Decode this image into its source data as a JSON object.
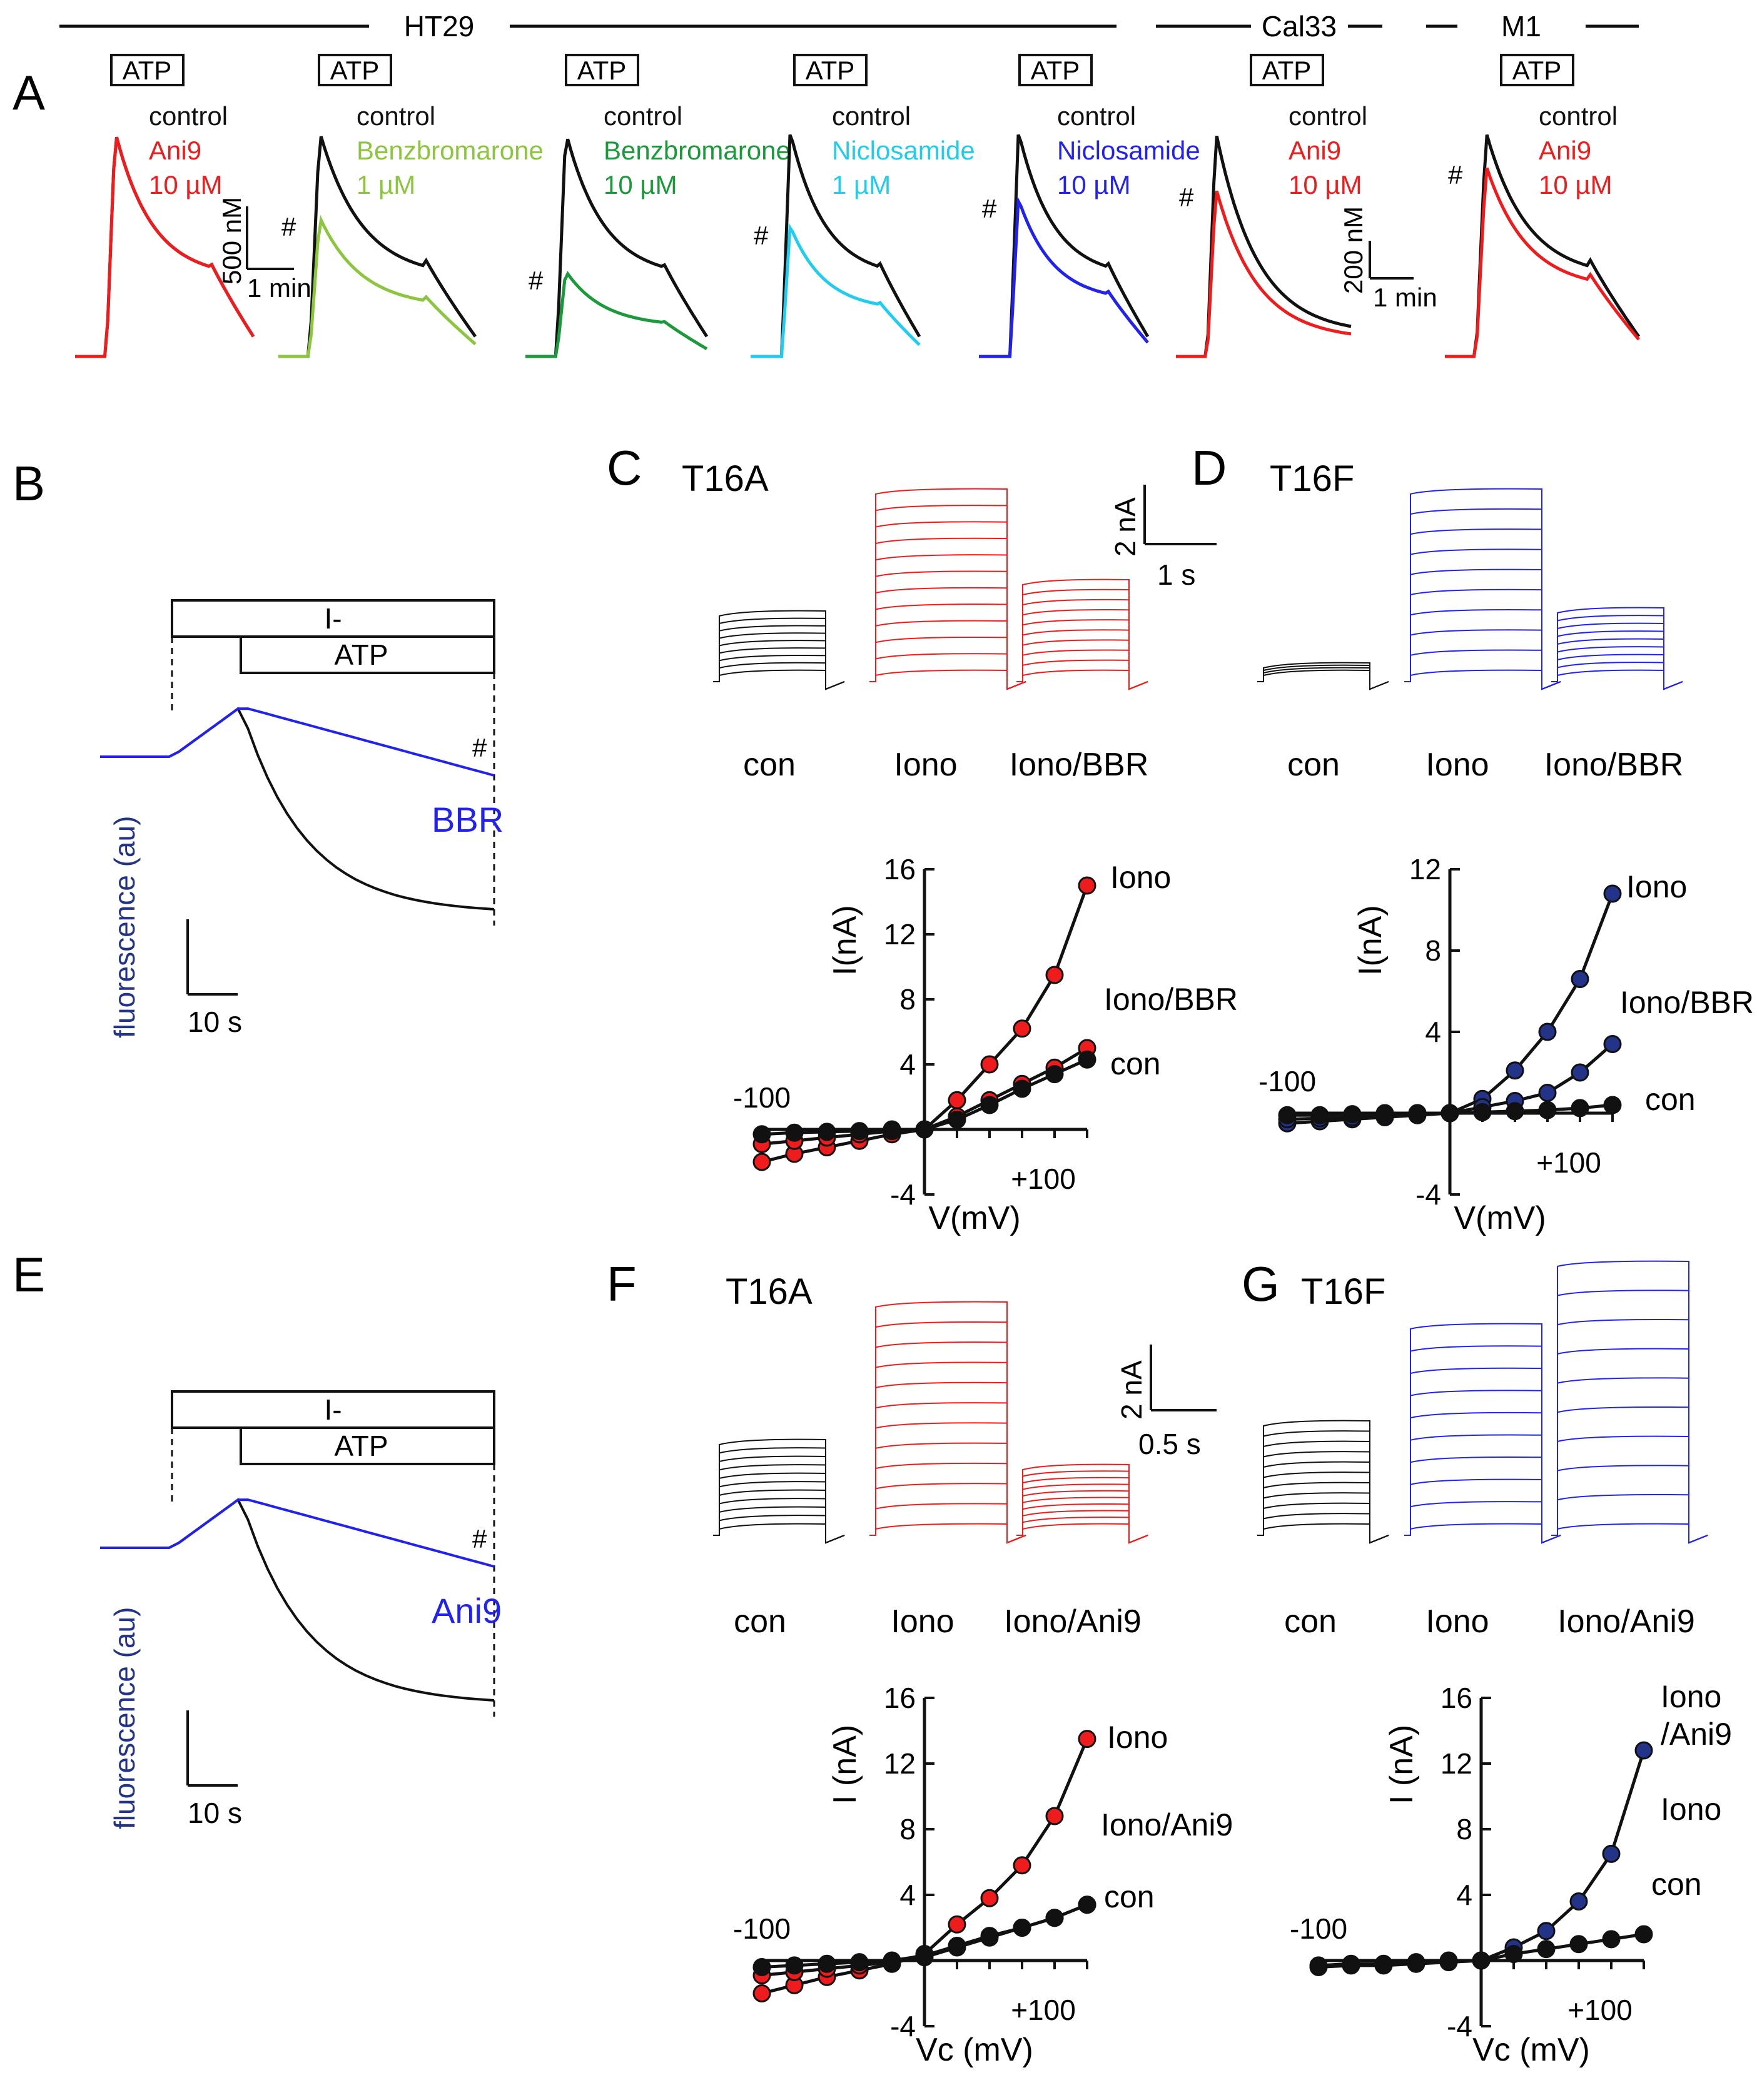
{
  "colors": {
    "black": "#111111",
    "red": "#ee1c1c",
    "light_green": "#8cc63f",
    "green": "#1a9a3a",
    "cyan": "#22ccee",
    "blue": "#2222ee",
    "navy": "#223388"
  },
  "header": {
    "ht29": "HT29",
    "cal33": "Cal33",
    "m1": "M1"
  },
  "panels": {
    "A": {
      "letter": "A"
    },
    "B": {
      "letter": "B"
    },
    "C": {
      "letter": "C",
      "title": "T16A"
    },
    "D": {
      "letter": "D",
      "title": "T16F"
    },
    "E": {
      "letter": "E"
    },
    "F": {
      "letter": "F",
      "title": "T16A"
    },
    "G": {
      "letter": "G",
      "title": "T16F"
    }
  },
  "calcium": {
    "atp": "ATP",
    "hash": "#",
    "scale1": {
      "y": "500 nM",
      "x": "1 min"
    },
    "scale2": {
      "y": "200 nM",
      "x": "1 min"
    },
    "traces": [
      {
        "legend": [
          "control",
          "Ani9",
          "10 µM"
        ],
        "color": "red",
        "amp": 1.0,
        "hash": false,
        "plateau": true
      },
      {
        "legend": [
          "control",
          "Benzbromarone",
          "1 µM"
        ],
        "color": "light_green",
        "amp": 0.62,
        "hash": true,
        "plateau": true
      },
      {
        "legend": [
          "control",
          "Benzbromarone",
          "10 µM"
        ],
        "color": "green",
        "amp": 0.38,
        "hash": true,
        "plateau": true
      },
      {
        "legend": [
          "control",
          "Niclosamide",
          "1 µM"
        ],
        "color": "cyan",
        "amp": 0.58,
        "hash": true,
        "plateau": true
      },
      {
        "legend": [
          "control",
          "Niclosamide",
          "10 µM"
        ],
        "color": "blue",
        "amp": 0.7,
        "hash": true,
        "plateau": true
      },
      {
        "legend": [
          "control",
          "Ani9",
          "10 µM"
        ],
        "color": "red",
        "amp": 0.75,
        "hash": true,
        "plateau": false
      },
      {
        "legend": [
          "control",
          "Ani9",
          "10 µM"
        ],
        "color": "red",
        "amp": 0.85,
        "hash": true,
        "plateau": true
      }
    ]
  },
  "iodide": {
    "B": {
      "iodide": "I-",
      "atp": "ATP",
      "drug": "BBR",
      "hash": "#",
      "ylabel": "fluorescence (au)",
      "xscale": "10 s"
    },
    "E": {
      "iodide": "I-",
      "atp": "ATP",
      "drug": "Ani9",
      "hash": "#",
      "ylabel": "fluorescence (au)",
      "xscale": "10 s"
    }
  },
  "currents": {
    "C": {
      "labels": [
        "con",
        "Iono",
        "Iono/BBR"
      ],
      "scale": {
        "y": "2 nA",
        "x": "1 s"
      }
    },
    "D": {
      "labels": [
        "con",
        "Iono",
        "Iono/BBR"
      ]
    },
    "F": {
      "labels": [
        "con",
        "Iono",
        "Iono/Ani9"
      ],
      "scale": {
        "y": "2 nA",
        "x": "0.5 s"
      }
    },
    "G": {
      "labels": [
        "con",
        "Iono",
        "Iono/Ani9"
      ]
    }
  },
  "chart_data": [
    {
      "panel": "C",
      "type": "line",
      "xlabel": "V(mV)",
      "ylabel": "I(nA)",
      "xlim": [
        -100,
        100
      ],
      "ylim": [
        -4,
        16
      ],
      "yticks": [
        -4,
        4,
        8,
        12,
        16
      ],
      "xtick_labels": [
        "-100",
        "+100"
      ],
      "x": [
        -100,
        -80,
        -60,
        -40,
        -20,
        0,
        20,
        40,
        60,
        80,
        100
      ],
      "series": [
        {
          "name": "Iono",
          "color": "red",
          "values": [
            -2.0,
            -1.5,
            -1.1,
            -0.7,
            -0.3,
            0,
            1.8,
            4.0,
            6.2,
            9.5,
            15.0
          ]
        },
        {
          "name": "Iono/BBR",
          "color": "red",
          "values": [
            -0.9,
            -0.7,
            -0.5,
            -0.3,
            -0.1,
            0,
            0.8,
            1.8,
            2.8,
            3.8,
            5.0
          ]
        },
        {
          "name": "con",
          "color": "black",
          "values": [
            -0.3,
            -0.2,
            -0.15,
            -0.1,
            0,
            0,
            0.6,
            1.5,
            2.5,
            3.4,
            4.3
          ]
        }
      ]
    },
    {
      "panel": "D",
      "type": "line",
      "xlabel": "V(mV)",
      "ylabel": "I(nA)",
      "xlim": [
        -100,
        100
      ],
      "ylim": [
        -4,
        12
      ],
      "yticks": [
        -4,
        4,
        8,
        12
      ],
      "xtick_labels": [
        "-100",
        "+100"
      ],
      "x": [
        -100,
        -80,
        -60,
        -40,
        -20,
        0,
        20,
        40,
        60,
        80,
        100
      ],
      "series": [
        {
          "name": "Iono",
          "color": "navy",
          "values": [
            -0.5,
            -0.4,
            -0.3,
            -0.2,
            -0.1,
            0,
            0.7,
            2.1,
            4.0,
            6.6,
            10.8
          ]
        },
        {
          "name": "Iono/BBR",
          "color": "navy",
          "values": [
            -0.3,
            -0.25,
            -0.2,
            -0.1,
            0,
            0,
            0.3,
            0.6,
            1.0,
            2.0,
            3.4
          ]
        },
        {
          "name": "con",
          "color": "black",
          "values": [
            -0.1,
            -0.1,
            -0.05,
            0,
            0,
            0,
            0.05,
            0.1,
            0.15,
            0.25,
            0.4
          ]
        }
      ]
    },
    {
      "panel": "F",
      "type": "line",
      "xlabel": "Vc (mV)",
      "ylabel": "I (nA)",
      "xlim": [
        -100,
        100
      ],
      "ylim": [
        -4,
        16
      ],
      "yticks": [
        -4,
        4,
        8,
        12,
        16
      ],
      "xtick_labels": [
        "-100",
        "+100"
      ],
      "x": [
        -100,
        -80,
        -60,
        -40,
        -20,
        0,
        20,
        40,
        60,
        80,
        100
      ],
      "series": [
        {
          "name": "Iono",
          "color": "red",
          "values": [
            -2.0,
            -1.5,
            -1.0,
            -0.6,
            -0.2,
            0.4,
            2.2,
            3.8,
            5.8,
            8.8,
            13.5
          ]
        },
        {
          "name": "Iono/Ani9",
          "color": "red",
          "values": [
            -0.9,
            -0.7,
            -0.5,
            -0.3,
            -0.1,
            0.2,
            0.8,
            1.4,
            2.0,
            2.6,
            3.4
          ]
        },
        {
          "name": "con",
          "color": "black",
          "values": [
            -0.4,
            -0.3,
            -0.2,
            -0.1,
            0,
            0.3,
            0.9,
            1.5,
            2.0,
            2.6,
            3.4
          ]
        }
      ]
    },
    {
      "panel": "G",
      "type": "line",
      "xlabel": "Vc (mV)",
      "ylabel": "I (nA)",
      "xlim": [
        -100,
        100
      ],
      "ylim": [
        -4,
        16
      ],
      "yticks": [
        -4,
        4,
        8,
        12,
        16
      ],
      "xtick_labels": [
        "-100",
        "+100"
      ],
      "x": [
        -100,
        -80,
        -60,
        -40,
        -20,
        0,
        20,
        40,
        60,
        80,
        100
      ],
      "series_labels": [
        "Iono /Ani9",
        "Iono"
      ],
      "series": [
        {
          "color": "navy",
          "values": [
            -0.4,
            -0.3,
            -0.3,
            -0.2,
            -0.1,
            0,
            0.8,
            1.8,
            3.6,
            6.5,
            12.8
          ]
        },
        {
          "name": "con",
          "color": "black",
          "values": [
            -0.3,
            -0.2,
            -0.2,
            -0.1,
            0,
            0,
            0.4,
            0.7,
            1.0,
            1.3,
            1.6
          ]
        }
      ]
    }
  ]
}
